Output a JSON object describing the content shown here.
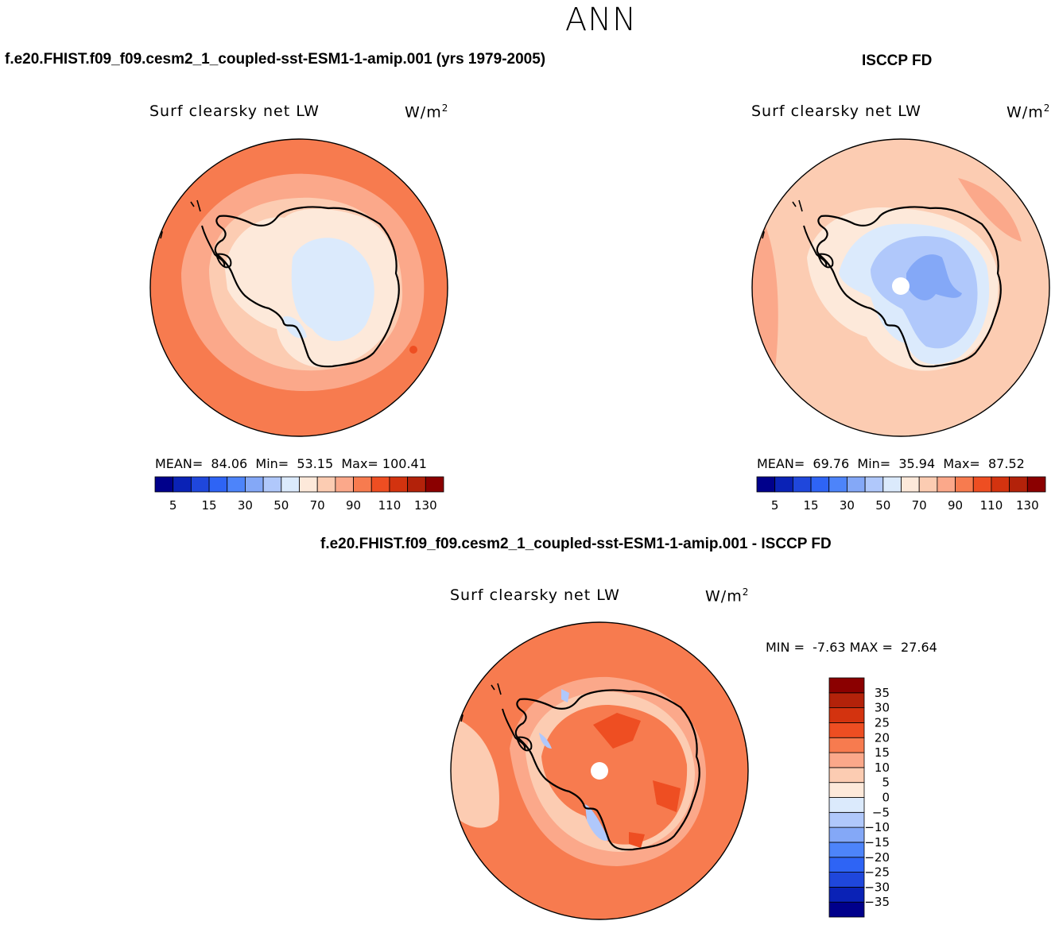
{
  "page": {
    "title": "ANN",
    "case_title_left": "f.e20.FHIST.f09_f09.cesm2_1_coupled-sst-ESM1-1-amip.001 (yrs 1979-2005)",
    "case_title_right": "ISCCP FD",
    "diff_title": "f.e20.FHIST.f09_f09.cesm2_1_coupled-sst-ESM1-1-amip.001 - ISCCP FD"
  },
  "panels": {
    "model": {
      "variable": "Surf clearsky net LW",
      "units": "W/m",
      "units_exp": "2",
      "mean_label": "MEAN=",
      "mean": "84.06",
      "min_label": "Min=",
      "min": "53.15",
      "max_label": "Max=",
      "max": "100.41"
    },
    "obs": {
      "variable": "Surf clearsky net LW",
      "units": "W/m",
      "units_exp": "2",
      "mean_label": "MEAN=",
      "mean": "69.76",
      "min_label": "Min=",
      "min": "35.94",
      "max_label": "Max=",
      "max": "87.52"
    },
    "diff": {
      "variable": "Surf clearsky net LW",
      "units": "W/m",
      "units_exp": "2",
      "min_label": "MIN =",
      "min": "-7.63",
      "max_label": "MAX =",
      "max": "27.64"
    }
  },
  "colorbar_abs": {
    "colors": [
      "#00008b",
      "#0a22b6",
      "#1f47dc",
      "#2e64f5",
      "#4d84fa",
      "#84a8f7",
      "#b0c8fb",
      "#dbeafc",
      "#fde9da",
      "#fcccb2",
      "#fba88a",
      "#f77b4f",
      "#ee4e22",
      "#d3330f",
      "#b3220a",
      "#8b0000"
    ],
    "tick_labels": [
      "5",
      "15",
      "30",
      "50",
      "70",
      "90",
      "110",
      "130"
    ]
  },
  "colorbar_diff": {
    "colors": [
      "#00008b",
      "#0a22b6",
      "#1f47dc",
      "#2e64f5",
      "#4d84fa",
      "#84a8f7",
      "#b0c8fb",
      "#dbeafc",
      "#fde9da",
      "#fcccb2",
      "#fba88a",
      "#f77b4f",
      "#ee4e22",
      "#d3330f",
      "#b3220a",
      "#8b0000"
    ],
    "tick_labels": [
      "-35",
      "-30",
      "-25",
      "-20",
      "-15",
      "-10",
      "-5",
      "0",
      "5",
      "10",
      "15",
      "20",
      "25",
      "30",
      "35"
    ]
  },
  "map_colors": {
    "ocean_model": "#f77b4f",
    "ring1_model": "#fba88a",
    "ring2_model": "#fcccb2",
    "land_model": "#fde9da",
    "inner_model": "#dbeafc",
    "ocean_obs": "#fcccb2",
    "ring_obs": "#fde9da",
    "land_obs": "#dbeafc",
    "inner_obs": "#b0c8fb",
    "core_obs": "#84a8f7",
    "ocean_diff": "#f77b4f",
    "ring_diff": "#fba88a",
    "land_diff": "#f77b4f",
    "pale_diff": "#fcccb2",
    "blue_diff": "#b0c8fb",
    "pole_hole": "#ffffff",
    "coast": "#000000"
  }
}
